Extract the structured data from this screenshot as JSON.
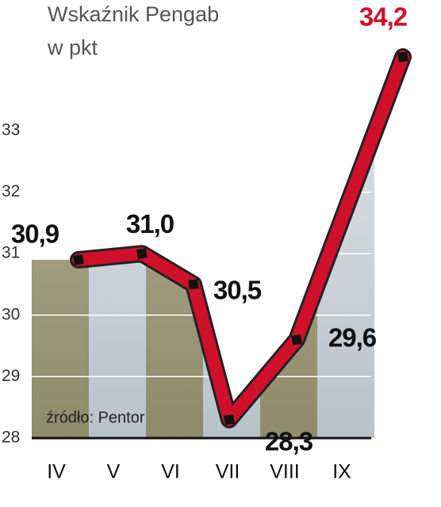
{
  "chart_data": {
    "type": "line",
    "title": "Wskaźnik Pengab",
    "subtitle": "w pkt",
    "source": "źródło: Pentor",
    "categories": [
      "IV",
      "V",
      "VI",
      "VII",
      "VIII",
      "IX"
    ],
    "values": [
      30.9,
      31.0,
      30.5,
      28.3,
      29.6,
      34.2
    ],
    "value_labels": [
      "30,9",
      "31,0",
      "30,5",
      "28,3",
      "29,6",
      "34,2"
    ],
    "color": "#d0102a",
    "ylim": [
      28,
      35
    ],
    "yticks": [
      28,
      29,
      30,
      31,
      32,
      33
    ],
    "grid": true
  }
}
